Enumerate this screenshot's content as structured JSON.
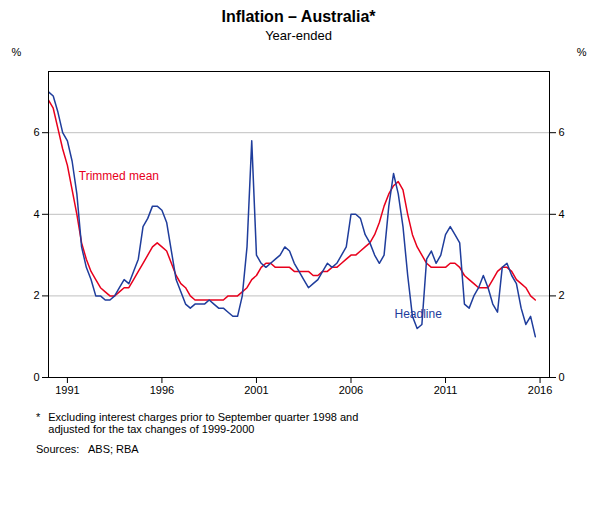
{
  "chart_data": {
    "type": "line",
    "title": "Inflation – Australia*",
    "subtitle": "Year-ended",
    "ylabel": "%",
    "y2label": "%",
    "xlim": [
      1990.0,
      2016.5
    ],
    "xticks": [
      1991,
      1996,
      2001,
      2006,
      2011,
      2016
    ],
    "ylim": [
      0,
      7.5
    ],
    "yticks": [
      0,
      2,
      4,
      6
    ],
    "y2lim": [
      0,
      7.5
    ],
    "y2ticks": [
      0,
      2,
      4,
      6
    ],
    "grid": true,
    "x": [
      1990.0,
      1990.25,
      1990.5,
      1990.75,
      1991.0,
      1991.25,
      1991.5,
      1991.75,
      1992.0,
      1992.25,
      1992.5,
      1992.75,
      1993.0,
      1993.25,
      1993.5,
      1993.75,
      1994.0,
      1994.25,
      1994.5,
      1994.75,
      1995.0,
      1995.25,
      1995.5,
      1995.75,
      1996.0,
      1996.25,
      1996.5,
      1996.75,
      1997.0,
      1997.25,
      1997.5,
      1997.75,
      1998.0,
      1998.25,
      1998.5,
      1998.75,
      1999.0,
      1999.25,
      1999.5,
      1999.75,
      2000.0,
      2000.25,
      2000.5,
      2000.75,
      2001.0,
      2001.25,
      2001.5,
      2001.75,
      2002.0,
      2002.25,
      2002.5,
      2002.75,
      2003.0,
      2003.25,
      2003.5,
      2003.75,
      2004.0,
      2004.25,
      2004.5,
      2004.75,
      2005.0,
      2005.25,
      2005.5,
      2005.75,
      2006.0,
      2006.25,
      2006.5,
      2006.75,
      2007.0,
      2007.25,
      2007.5,
      2007.75,
      2008.0,
      2008.25,
      2008.5,
      2008.75,
      2009.0,
      2009.25,
      2009.5,
      2009.75,
      2010.0,
      2010.25,
      2010.5,
      2010.75,
      2011.0,
      2011.25,
      2011.5,
      2011.75,
      2012.0,
      2012.25,
      2012.5,
      2012.75,
      2013.0,
      2013.25,
      2013.5,
      2013.75,
      2014.0,
      2014.25,
      2014.5,
      2014.75,
      2015.0,
      2015.25,
      2015.5,
      2015.75
    ],
    "series": [
      {
        "name": "Trimmed mean",
        "color": "#e8001c",
        "values": [
          6.8,
          6.6,
          6.1,
          5.6,
          5.2,
          4.6,
          4.0,
          3.3,
          2.9,
          2.6,
          2.4,
          2.2,
          2.1,
          2.0,
          2.0,
          2.1,
          2.2,
          2.2,
          2.4,
          2.6,
          2.8,
          3.0,
          3.2,
          3.3,
          3.2,
          3.1,
          2.8,
          2.5,
          2.3,
          2.2,
          2.0,
          1.9,
          1.9,
          1.9,
          1.9,
          1.9,
          1.9,
          1.9,
          2.0,
          2.0,
          2.0,
          2.1,
          2.2,
          2.4,
          2.5,
          2.7,
          2.8,
          2.8,
          2.7,
          2.7,
          2.7,
          2.7,
          2.6,
          2.6,
          2.6,
          2.6,
          2.5,
          2.5,
          2.6,
          2.6,
          2.7,
          2.7,
          2.8,
          2.9,
          3.0,
          3.0,
          3.1,
          3.2,
          3.3,
          3.5,
          3.8,
          4.2,
          4.5,
          4.7,
          4.8,
          4.6,
          4.0,
          3.5,
          3.2,
          3.0,
          2.8,
          2.7,
          2.7,
          2.7,
          2.7,
          2.8,
          2.8,
          2.7,
          2.5,
          2.4,
          2.3,
          2.2,
          2.2,
          2.2,
          2.4,
          2.6,
          2.7,
          2.7,
          2.6,
          2.4,
          2.3,
          2.2,
          2.0,
          1.9
        ]
      },
      {
        "name": "Headline",
        "color": "#1f3d9c",
        "values": [
          7.0,
          6.9,
          6.5,
          6.0,
          5.8,
          5.3,
          4.5,
          3.2,
          2.7,
          2.4,
          2.0,
          2.0,
          1.9,
          1.9,
          2.0,
          2.2,
          2.4,
          2.3,
          2.6,
          2.9,
          3.7,
          3.9,
          4.2,
          4.2,
          4.1,
          3.8,
          3.1,
          2.4,
          2.1,
          1.8,
          1.7,
          1.8,
          1.8,
          1.8,
          1.9,
          1.8,
          1.7,
          1.7,
          1.6,
          1.5,
          1.5,
          2.0,
          3.2,
          5.8,
          3.0,
          2.8,
          2.7,
          2.8,
          2.9,
          3.0,
          3.2,
          3.1,
          2.8,
          2.6,
          2.4,
          2.2,
          2.3,
          2.4,
          2.6,
          2.8,
          2.7,
          2.8,
          3.0,
          3.2,
          4.0,
          4.0,
          3.9,
          3.5,
          3.3,
          3.0,
          2.8,
          3.0,
          4.2,
          5.0,
          4.5,
          3.7,
          2.5,
          1.5,
          1.2,
          1.3,
          2.9,
          3.1,
          2.8,
          3.0,
          3.5,
          3.7,
          3.5,
          3.3,
          1.8,
          1.7,
          2.0,
          2.2,
          2.5,
          2.2,
          1.8,
          1.6,
          2.7,
          2.8,
          2.5,
          2.3,
          1.7,
          1.3,
          1.5,
          1.0
        ]
      }
    ],
    "annotations": [
      {
        "text": "Trimmed mean",
        "x": 1991.6,
        "y": 4.85,
        "color": "#e8001c"
      },
      {
        "text": "Headline",
        "x": 2008.3,
        "y": 1.45,
        "color": "#1f3d9c"
      }
    ],
    "footnote": {
      "mark": "*",
      "text": "Excluding interest charges prior to September quarter 1998 and\nadjusted for the tax changes of 1999-2000"
    },
    "sources": "Sources:   ABS; RBA"
  }
}
